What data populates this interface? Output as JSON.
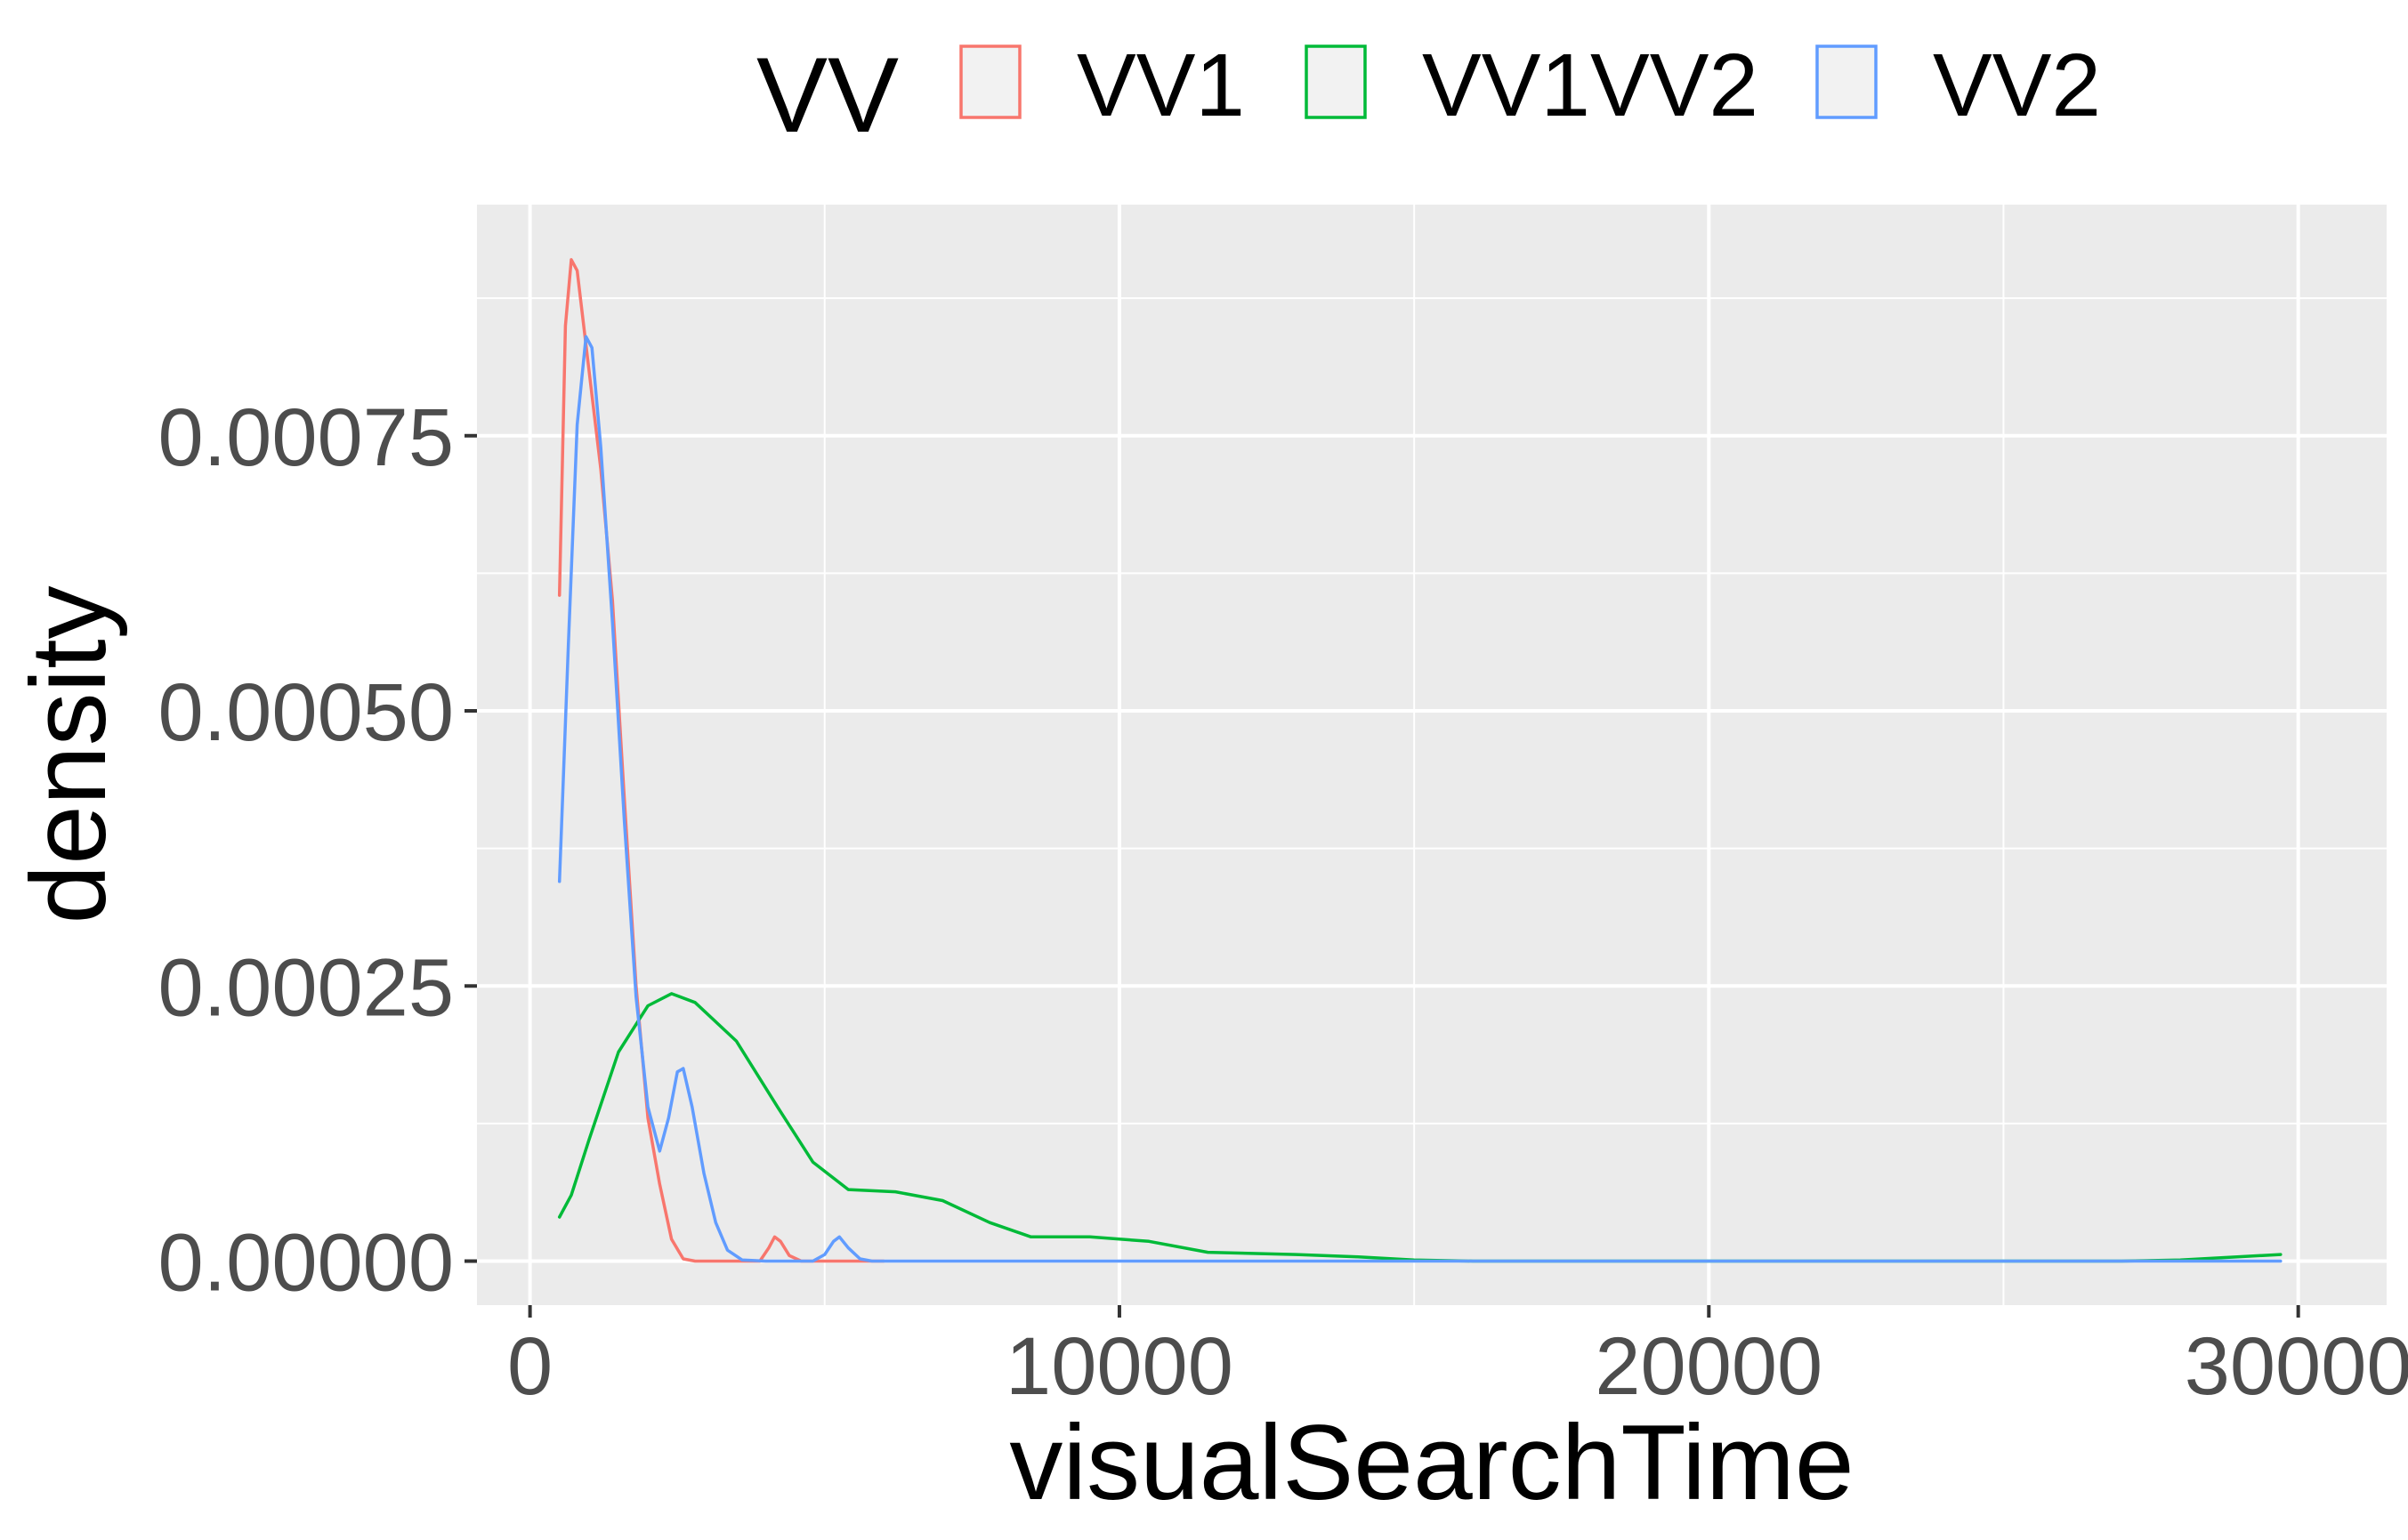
{
  "chart_data": {
    "type": "line",
    "xlabel": "visualSearchTime",
    "ylabel": "density",
    "xlim": [
      -900,
      31500
    ],
    "ylim": [
      -4e-05,
      0.00096
    ],
    "x_ticks": [
      0,
      10000,
      20000,
      30000
    ],
    "x_tick_labels": [
      "0",
      "10000",
      "20000",
      "30000"
    ],
    "y_ticks": [
      0,
      0.00025,
      0.0005,
      0.00075
    ],
    "y_tick_labels": [
      "0.00000",
      "0.00025",
      "0.00050",
      "0.00075"
    ],
    "grid": true,
    "background": "#ebebeb",
    "legend": {
      "title": "VV",
      "position": "top",
      "labels": [
        "VV1",
        "VV1VV2",
        "VV2"
      ]
    },
    "series": [
      {
        "name": "VV1",
        "color": "#f8766d",
        "points": [
          [
            500,
            0.000605
          ],
          [
            600,
            0.00085
          ],
          [
            700,
            0.00091
          ],
          [
            800,
            0.0009
          ],
          [
            1000,
            0.00081
          ],
          [
            1200,
            0.00072
          ],
          [
            1400,
            0.0006
          ],
          [
            1600,
            0.00042
          ],
          [
            1800,
            0.00025
          ],
          [
            2000,
            0.00013
          ],
          [
            2200,
            7e-05
          ],
          [
            2400,
            2e-05
          ],
          [
            2600,
            2e-06
          ],
          [
            2800,
            0.0
          ],
          [
            3500,
            0.0
          ],
          [
            3900,
            0.0
          ],
          [
            4050,
            1.2e-05
          ],
          [
            4150,
            2.2e-05
          ],
          [
            4250,
            1.8e-05
          ],
          [
            4400,
            5e-06
          ],
          [
            4600,
            0.0
          ],
          [
            6000,
            0.0
          ]
        ]
      },
      {
        "name": "VV1VV2",
        "color": "#00ba38",
        "points": [
          [
            500,
            4e-05
          ],
          [
            700,
            6e-05
          ],
          [
            1000,
            0.00011
          ],
          [
            1500,
            0.00019
          ],
          [
            2000,
            0.000232
          ],
          [
            2400,
            0.000243
          ],
          [
            2800,
            0.000235
          ],
          [
            3500,
            0.0002
          ],
          [
            4200,
            0.00014
          ],
          [
            4800,
            9e-05
          ],
          [
            5400,
            6.5e-05
          ],
          [
            6200,
            6.3e-05
          ],
          [
            7000,
            5.5e-05
          ],
          [
            7800,
            3.5e-05
          ],
          [
            8500,
            2.2e-05
          ],
          [
            9500,
            2.2e-05
          ],
          [
            10500,
            1.8e-05
          ],
          [
            11500,
            8e-06
          ],
          [
            13000,
            6e-06
          ],
          [
            14000,
            4e-06
          ],
          [
            15000,
            1e-06
          ],
          [
            16000,
            0.0
          ],
          [
            27000,
            0.0
          ],
          [
            28000,
            1e-06
          ],
          [
            29000,
            4e-06
          ],
          [
            29700,
            6e-06
          ]
        ]
      },
      {
        "name": "VV2",
        "color": "#619cff",
        "points": [
          [
            500,
            0.000345
          ],
          [
            650,
            0.00056
          ],
          [
            800,
            0.00076
          ],
          [
            950,
            0.00084
          ],
          [
            1050,
            0.00083
          ],
          [
            1200,
            0.00074
          ],
          [
            1400,
            0.00058
          ],
          [
            1600,
            0.0004
          ],
          [
            1800,
            0.00024
          ],
          [
            2000,
            0.00014
          ],
          [
            2200,
            0.0001
          ],
          [
            2350,
            0.00013
          ],
          [
            2500,
            0.000172
          ],
          [
            2600,
            0.000175
          ],
          [
            2750,
            0.00014
          ],
          [
            2950,
            8e-05
          ],
          [
            3150,
            3.5e-05
          ],
          [
            3350,
            1e-05
          ],
          [
            3600,
            1e-06
          ],
          [
            4000,
            0.0
          ],
          [
            4800,
            0.0
          ],
          [
            5000,
            6e-06
          ],
          [
            5150,
            1.8e-05
          ],
          [
            5250,
            2.2e-05
          ],
          [
            5400,
            1.2e-05
          ],
          [
            5600,
            2e-06
          ],
          [
            5800,
            0.0
          ],
          [
            29700,
            0.0
          ]
        ]
      }
    ]
  }
}
